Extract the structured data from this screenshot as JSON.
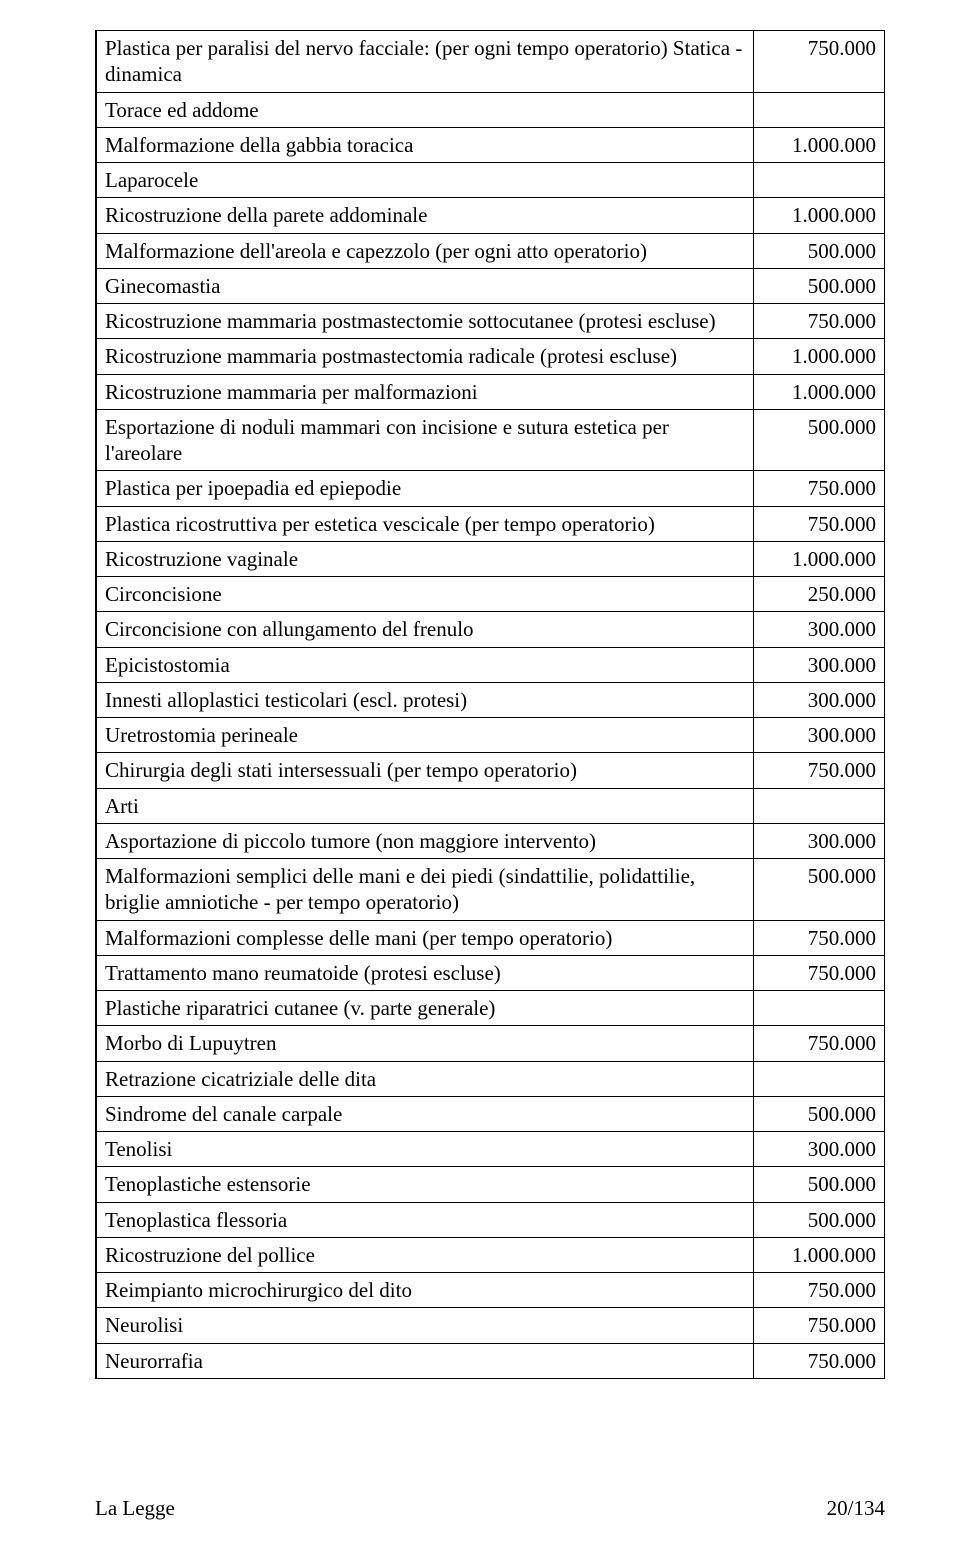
{
  "rows": [
    {
      "desc": "Plastica per paralisi del nervo facciale: (per ogni tempo operatorio) Statica - dinamica",
      "val": "750.000"
    },
    {
      "desc": "Torace ed addome",
      "val": ""
    },
    {
      "desc": "Malformazione della gabbia toracica",
      "val": "1.000.000"
    },
    {
      "desc": "Laparocele",
      "val": ""
    },
    {
      "desc": "Ricostruzione della parete addominale",
      "val": "1.000.000"
    },
    {
      "desc": "Malformazione dell'areola e capezzolo (per ogni atto operatorio)",
      "val": "500.000"
    },
    {
      "desc": "Ginecomastia",
      "val": "500.000"
    },
    {
      "desc": "Ricostruzione mammaria postmastectomie sottocutanee (protesi escluse)",
      "val": "750.000"
    },
    {
      "desc": "Ricostruzione mammaria postmastectomia radicale (protesi escluse)",
      "val": "1.000.000"
    },
    {
      "desc": "Ricostruzione mammaria per malformazioni",
      "val": "1.000.000"
    },
    {
      "desc": "Esportazione di noduli mammari con incisione e sutura estetica per l'areolare",
      "val": "500.000"
    },
    {
      "desc": "Plastica per ipoepadia ed epiepodie",
      "val": "750.000"
    },
    {
      "desc": "Plastica ricostruttiva per estetica vescicale (per tempo operatorio)",
      "val": "750.000"
    },
    {
      "desc": "Ricostruzione vaginale",
      "val": "1.000.000"
    },
    {
      "desc": "Circoncisione",
      "val": "250.000"
    },
    {
      "desc": "Circoncisione con allungamento del frenulo",
      "val": "300.000"
    },
    {
      "desc": "Epicistostomia",
      "val": "300.000"
    },
    {
      "desc": "Innesti alloplastici testicolari (escl. protesi)",
      "val": "300.000"
    },
    {
      "desc": "Uretrostomia perineale",
      "val": "300.000"
    },
    {
      "desc": "Chirurgia degli stati intersessuali (per tempo operatorio)",
      "val": "750.000"
    },
    {
      "desc": "Arti",
      "val": ""
    },
    {
      "desc": "Asportazione di piccolo tumore (non maggiore intervento)",
      "val": "300.000"
    },
    {
      "desc": "Malformazioni semplici delle mani e dei piedi (sindattilie, polidattilie, briglie amniotiche - per tempo operatorio)",
      "val": "500.000"
    },
    {
      "desc": "Malformazioni complesse delle mani (per tempo operatorio)",
      "val": "750.000"
    },
    {
      "desc": "Trattamento mano reumatoide (protesi escluse)",
      "val": "750.000"
    },
    {
      "desc": "Plastiche riparatrici cutanee (v. parte generale)",
      "val": ""
    },
    {
      "desc": "Morbo di Lupuytren",
      "val": "750.000"
    },
    {
      "desc": "Retrazione cicatriziale delle dita",
      "val": ""
    },
    {
      "desc": "Sindrome del canale carpale",
      "val": "500.000"
    },
    {
      "desc": "Tenolisi",
      "val": "300.000"
    },
    {
      "desc": "Tenoplastiche estensorie",
      "val": "500.000"
    },
    {
      "desc": "Tenoplastica flessoria",
      "val": "500.000"
    },
    {
      "desc": "Ricostruzione del pollice",
      "val": "1.000.000"
    },
    {
      "desc": "Reimpianto microchirurgico del dito",
      "val": "750.000"
    },
    {
      "desc": "Neurolisi",
      "val": "750.000"
    },
    {
      "desc": "Neurorrafia",
      "val": "750.000"
    }
  ],
  "footer": {
    "left": "La Legge",
    "right": "20/134"
  }
}
